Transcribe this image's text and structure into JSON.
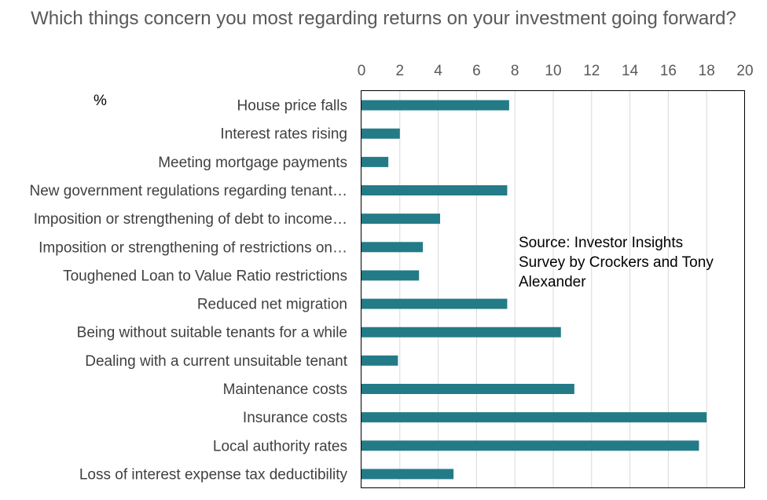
{
  "chart_data": {
    "type": "bar",
    "orientation": "horizontal",
    "title": "Which things concern you most regarding returns on your investment going forward?",
    "unit_label": "%",
    "annotation": "Source: Investor Insights Survey by Crockers and Tony Alexander",
    "xlim": [
      0,
      20
    ],
    "xticks": [
      0,
      2,
      4,
      6,
      8,
      10,
      12,
      14,
      16,
      18,
      20
    ],
    "x_axis_position": "top",
    "grid": true,
    "bar_color": "#237B87",
    "categories": [
      "House price falls",
      "Interest rates rising",
      "Meeting mortgage payments",
      "New government regulations regarding tenant…",
      "Imposition or strengthening of debt to income…",
      "Imposition or strengthening of restrictions on…",
      "Toughened Loan to Value Ratio restrictions",
      "Reduced net migration",
      "Being without suitable tenants for a while",
      "Dealing with a current unsuitable tenant",
      "Maintenance costs",
      "Insurance costs",
      "Local authority rates",
      "Loss of interest expense tax deductibility"
    ],
    "values": [
      7.7,
      2.0,
      1.4,
      7.6,
      4.1,
      3.2,
      3.0,
      7.6,
      10.4,
      1.9,
      11.1,
      18.0,
      17.6,
      4.8
    ]
  }
}
